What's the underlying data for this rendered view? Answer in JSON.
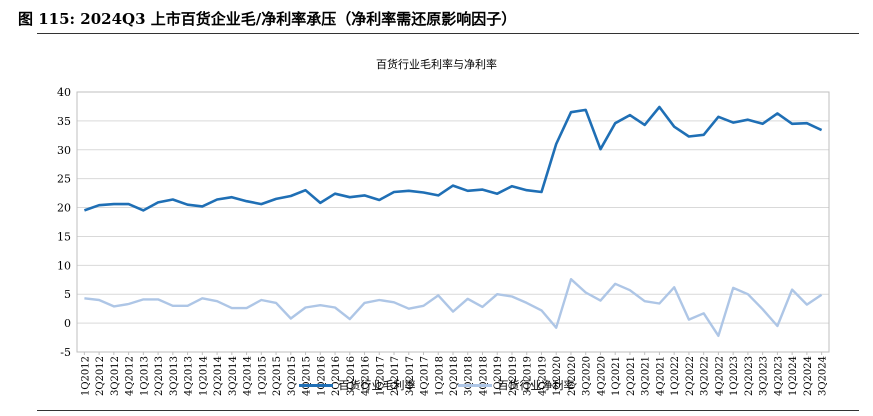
{
  "figure": {
    "title": "图 115:  2024Q3 上市百货企业毛/净利率承压（净利率需还原影响因子）"
  },
  "chart_data": {
    "type": "line",
    "title": "百货行业毛利率与净利率",
    "xlabel": "",
    "ylabel": "",
    "ylim": [
      -5,
      40
    ],
    "yticks": [
      -5,
      0,
      5,
      10,
      15,
      20,
      25,
      30,
      35,
      40
    ],
    "grid": true,
    "legend_position": "bottom",
    "categories": [
      "1Q2012",
      "2Q2012",
      "3Q2012",
      "4Q2012",
      "1Q2013",
      "2Q2013",
      "3Q2013",
      "4Q2013",
      "1Q2014",
      "2Q2014",
      "3Q2014",
      "4Q2014",
      "1Q2015",
      "2Q2015",
      "3Q2015",
      "4Q2015",
      "1Q2016",
      "2Q2016",
      "3Q2016",
      "4Q2016",
      "1Q2017",
      "2Q2017",
      "3Q2017",
      "4Q2017",
      "1Q2018",
      "2Q2018",
      "3Q2018",
      "4Q2018",
      "1Q2019",
      "2Q2019",
      "3Q2019",
      "4Q2019",
      "1Q2020",
      "2Q2020",
      "3Q2020",
      "4Q2020",
      "1Q2021",
      "2Q2021",
      "3Q2021",
      "4Q2021",
      "1Q2022",
      "2Q2022",
      "3Q2022",
      "4Q2022",
      "1Q2023",
      "2Q2023",
      "3Q2023",
      "4Q2023",
      "1Q2024",
      "2Q2024",
      "3Q2024"
    ],
    "series": [
      {
        "name": "百货行业毛利率",
        "color": "#1f6fb5",
        "values": [
          19.5,
          20.4,
          20.6,
          20.6,
          19.5,
          20.9,
          21.4,
          20.5,
          20.2,
          21.4,
          21.8,
          21.1,
          20.6,
          21.5,
          22.0,
          23.0,
          20.8,
          22.4,
          21.8,
          22.1,
          21.3,
          22.7,
          22.9,
          22.6,
          22.1,
          23.8,
          22.9,
          23.1,
          22.4,
          23.7,
          23.0,
          22.7,
          31.0,
          36.5,
          36.9,
          30.1,
          34.6,
          36.0,
          34.3,
          37.4,
          34.0,
          32.3,
          32.6,
          35.7,
          34.7,
          35.2,
          34.5,
          36.3,
          34.5,
          34.6,
          33.4
        ]
      },
      {
        "name": "百货行业净利率",
        "color": "#aec6e6",
        "values": [
          4.3,
          4.0,
          2.9,
          3.3,
          4.1,
          4.1,
          3.0,
          3.0,
          4.3,
          3.8,
          2.6,
          2.6,
          4.0,
          3.5,
          0.8,
          2.7,
          3.1,
          2.7,
          0.7,
          3.5,
          4.0,
          3.6,
          2.5,
          3.0,
          4.8,
          2.0,
          4.2,
          2.8,
          5.0,
          4.6,
          3.5,
          2.2,
          -0.8,
          7.6,
          5.3,
          3.9,
          6.8,
          5.7,
          3.8,
          3.4,
          6.2,
          0.6,
          1.7,
          -2.2,
          6.1,
          5.0,
          2.4,
          -0.5,
          5.8,
          3.2,
          4.9
        ]
      }
    ]
  }
}
